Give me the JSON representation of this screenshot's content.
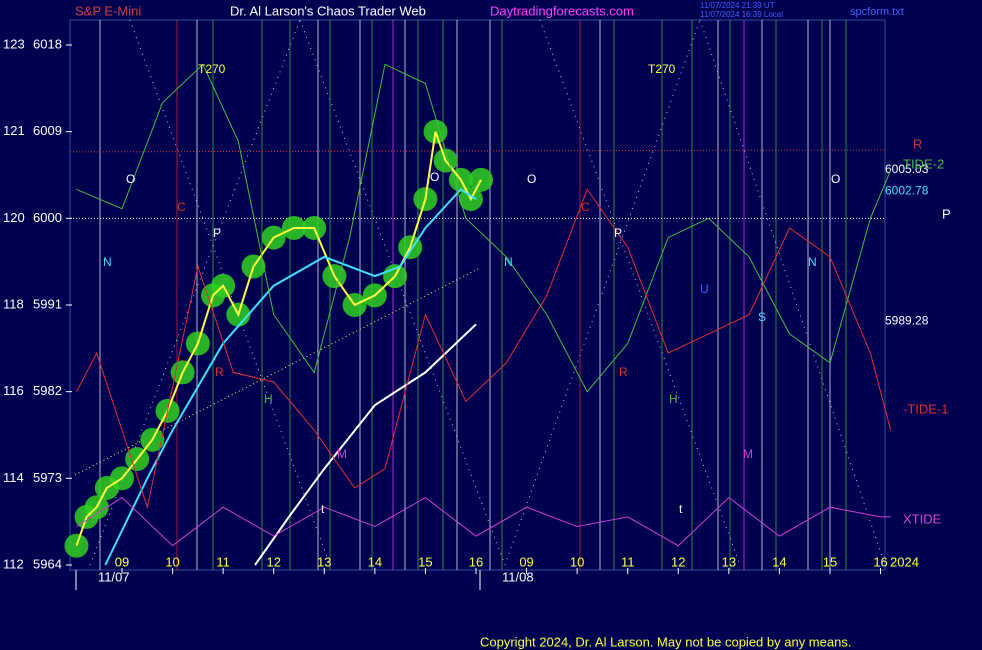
{
  "chart_data": {
    "type": "line",
    "header": {
      "symbol": "S&P E-Mini",
      "title": "Dr. Al Larson's Chaos Trader Web",
      "site": "Daytradingforecasts.com",
      "stamp_ut": "11/07/2024 21:39 UT",
      "stamp_local": "11/07/2024 16:39 Local",
      "file": "spcform.txt"
    },
    "ylim": [
      5964,
      6018
    ],
    "yticks": [
      5964,
      5973,
      5982,
      5991,
      6000,
      6009,
      6018
    ],
    "planet_degrees": [
      112,
      114,
      116,
      118,
      120,
      121,
      123
    ],
    "xlim": [
      -1,
      15.2
    ],
    "categories": [
      "09",
      "10",
      "11",
      "12",
      "13",
      "14",
      "15",
      "16",
      "09",
      "10",
      "11",
      "12",
      "13",
      "14",
      "15",
      "16"
    ],
    "date_labels": [
      "11/07",
      "11/08"
    ],
    "series": [
      {
        "color": "#ffff40",
        "x": [
          -0.9,
          -0.7,
          -0.5,
          -0.3,
          0,
          0.3,
          0.6,
          0.9,
          1.2,
          1.5,
          1.8,
          2.0,
          2.3,
          2.6,
          3.0,
          3.4,
          3.8,
          4.2,
          4.6,
          5.0,
          5.4,
          5.7,
          6.0,
          6.2,
          6.4,
          6.7,
          6.9,
          7.1
        ],
        "values": [
          5966,
          5969,
          5970,
          5972,
          5973,
          5975,
          5977,
          5980,
          5984,
          5987,
          5992,
          5993,
          5990,
          5995,
          5998,
          5999,
          5999,
          5994,
          5991,
          5992,
          5994,
          5997,
          6002,
          6009,
          6006,
          6004,
          6002,
          6004
        ]
      },
      {
        "color": "#40e0ff",
        "x": [
          -0.33,
          0.5,
          1.0,
          2.0,
          3.0,
          4.0,
          5.0,
          5.5,
          6.0,
          6.7,
          7.0
        ],
        "values": [
          5964,
          5973,
          5978,
          5987,
          5993,
          5996,
          5994,
          5995,
          5999,
          6003,
          6002
        ]
      },
      {
        "color": "#ffffff",
        "x": [
          2.63,
          3.3,
          4.0,
          5.0,
          6.0,
          7.0
        ],
        "values": [
          5964,
          5969,
          5974,
          5980.6,
          5984,
          5989
        ]
      },
      {
        "name": "TIDE-2",
        "color": "#40c040",
        "x": [
          -0.9,
          0,
          0.8,
          1.6,
          2.3,
          3.0,
          3.8,
          4.5,
          5.2,
          6.0,
          6.8,
          7.6,
          8.4,
          9.2,
          10.0,
          10.8,
          11.6,
          12.4,
          13.2,
          14.0,
          14.8,
          15.2
        ],
        "values": [
          6003,
          6001,
          6012,
          6016,
          6008,
          5990,
          5984,
          5998,
          6016,
          6014,
          6000,
          5996,
          5990,
          5982,
          5987,
          5998,
          6000,
          5996,
          5988,
          5985,
          6000,
          6005
        ]
      },
      {
        "name": "-TIDE-1",
        "color": "#e03030",
        "x": [
          -0.9,
          -0.5,
          0.5,
          1.5,
          2.2,
          3.0,
          3.8,
          4.6,
          5.2,
          6.0,
          6.8,
          7.6,
          8.4,
          9.2,
          10.0,
          10.8,
          11.6,
          12.4,
          13.2,
          14.0,
          14.8,
          15.2
        ],
        "values": [
          5982,
          5986,
          5970,
          5995,
          5984,
          5983,
          5978,
          5972,
          5974,
          5990,
          5981,
          5985,
          5992,
          6003,
          5997,
          5986,
          5988,
          5990,
          5999,
          5996,
          5986,
          5978
        ]
      },
      {
        "name": "XTIDE",
        "color": "#d040d0",
        "x": [
          -0.9,
          0,
          1,
          2,
          3,
          4,
          5,
          6,
          7,
          8,
          9,
          10,
          11,
          12,
          13,
          14,
          15,
          15.2
        ],
        "values": [
          5968,
          5971,
          5966,
          5970,
          5967,
          5970,
          5968,
          5971,
          5967,
          5970,
          5968,
          5969,
          5966,
          5971,
          5967,
          5970,
          5969,
          5969
        ]
      }
    ],
    "levels": [
      {
        "value": 6005.03,
        "color": "#ffffff"
      },
      {
        "value": 6002.78,
        "color": "#40e0ff"
      },
      {
        "value": 5989.28,
        "color": "#ffffff"
      }
    ],
    "side_labels": [
      "R",
      "P"
    ],
    "annotations": [
      "T270",
      "T270",
      "O",
      "O",
      "O",
      "O",
      "C",
      "C",
      "P",
      "P",
      "N",
      "N",
      "N",
      "R",
      "R",
      "H",
      "H",
      "M",
      "M",
      "U",
      "S",
      "t",
      "t"
    ],
    "year": "2024",
    "copyright": "Copyright 2024, Dr. Al Larson. May not be copied by any means."
  }
}
